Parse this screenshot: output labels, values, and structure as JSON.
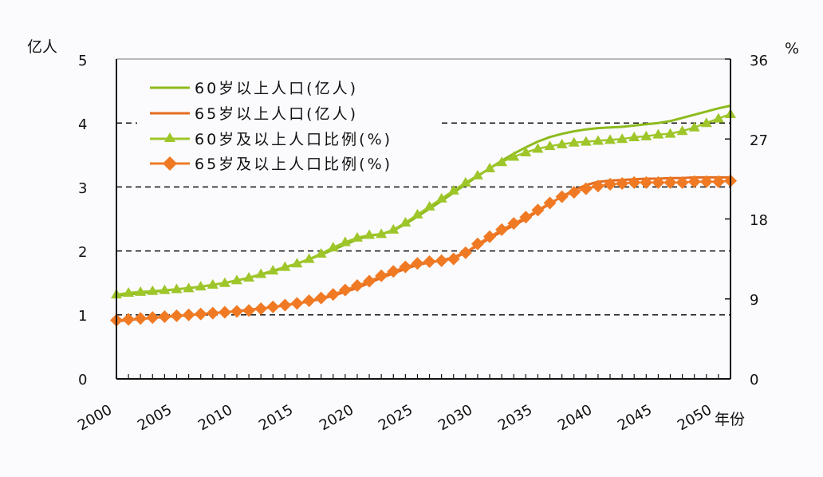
{
  "chart_data": {
    "type": "line",
    "title": "",
    "xlabel": "年份",
    "ylabel_left": "亿人",
    "ylabel_right": "%",
    "x": [
      2000,
      2001,
      2002,
      2003,
      2004,
      2005,
      2006,
      2007,
      2008,
      2009,
      2010,
      2011,
      2012,
      2013,
      2014,
      2015,
      2016,
      2017,
      2018,
      2019,
      2020,
      2021,
      2022,
      2023,
      2024,
      2025,
      2026,
      2027,
      2028,
      2029,
      2030,
      2031,
      2032,
      2033,
      2034,
      2035,
      2036,
      2037,
      2038,
      2039,
      2040,
      2041,
      2042,
      2043,
      2044,
      2045,
      2046,
      2047,
      2048,
      2049,
      2050,
      2051
    ],
    "x_tick_labels": [
      "2000",
      "2005",
      "2010",
      "2015",
      "2020",
      "2025",
      "2030",
      "2035",
      "2040",
      "2045",
      "2050"
    ],
    "ylim_left": [
      0,
      5
    ],
    "yticks_left": [
      0,
      1,
      2,
      3,
      4,
      5
    ],
    "ylim_right": [
      0,
      36
    ],
    "yticks_right": [
      0,
      9,
      18,
      27,
      36
    ],
    "grid": "dashed horizontal at left-axis 1, 2, 3, 4",
    "legend_position": "upper left inside plot",
    "series": [
      {
        "name": "60岁以上人口(亿人)",
        "axis": "left",
        "marker": "none",
        "color": "#8dbb1e",
        "values": [
          1.3,
          1.32,
          1.34,
          1.36,
          1.38,
          1.4,
          1.42,
          1.44,
          1.47,
          1.5,
          1.54,
          1.58,
          1.63,
          1.68,
          1.74,
          1.8,
          1.87,
          1.94,
          2.02,
          2.1,
          2.18,
          2.24,
          2.26,
          2.32,
          2.42,
          2.54,
          2.66,
          2.78,
          2.91,
          3.04,
          3.17,
          3.29,
          3.41,
          3.52,
          3.62,
          3.71,
          3.78,
          3.83,
          3.87,
          3.9,
          3.92,
          3.93,
          3.94,
          3.96,
          3.98,
          4.0,
          4.03,
          4.08,
          4.13,
          4.18,
          4.23,
          4.27
        ]
      },
      {
        "name": "65岁以上人口(亿人)",
        "axis": "left",
        "marker": "none",
        "color": "#e36c20",
        "values": [
          0.9,
          0.92,
          0.94,
          0.95,
          0.97,
          0.98,
          1.0,
          1.01,
          1.03,
          1.04,
          1.06,
          1.08,
          1.1,
          1.12,
          1.15,
          1.18,
          1.21,
          1.25,
          1.3,
          1.36,
          1.42,
          1.5,
          1.58,
          1.65,
          1.72,
          1.78,
          1.82,
          1.85,
          1.9,
          1.98,
          2.08,
          2.2,
          2.3,
          2.4,
          2.5,
          2.62,
          2.74,
          2.85,
          2.95,
          3.03,
          3.08,
          3.1,
          3.11,
          3.12,
          3.13,
          3.13,
          3.14,
          3.14,
          3.15,
          3.15,
          3.15,
          3.15
        ]
      },
      {
        "name": "60岁及以上人口比例(%)",
        "axis": "right",
        "marker": "triangle",
        "color": "#9ec62a",
        "values": [
          9.5,
          9.7,
          9.8,
          9.9,
          10.0,
          10.1,
          10.2,
          10.4,
          10.6,
          10.8,
          11.1,
          11.4,
          11.8,
          12.2,
          12.6,
          13.0,
          13.5,
          14.1,
          14.8,
          15.4,
          15.9,
          16.2,
          16.3,
          16.8,
          17.6,
          18.5,
          19.4,
          20.3,
          21.2,
          22.1,
          22.9,
          23.7,
          24.4,
          25.0,
          25.5,
          25.9,
          26.2,
          26.4,
          26.6,
          26.7,
          26.8,
          26.9,
          27.0,
          27.2,
          27.3,
          27.5,
          27.6,
          27.9,
          28.3,
          28.8,
          29.3,
          29.8
        ]
      },
      {
        "name": "65岁及以上人口比例(%)",
        "axis": "right",
        "marker": "diamond",
        "color": "#f07a24",
        "values": [
          6.6,
          6.7,
          6.8,
          6.9,
          7.0,
          7.1,
          7.2,
          7.3,
          7.4,
          7.5,
          7.6,
          7.7,
          7.9,
          8.1,
          8.3,
          8.5,
          8.8,
          9.1,
          9.5,
          10.0,
          10.5,
          11.0,
          11.6,
          12.1,
          12.6,
          13.0,
          13.2,
          13.3,
          13.5,
          14.2,
          15.2,
          16.0,
          16.8,
          17.5,
          18.2,
          19.0,
          19.8,
          20.5,
          21.0,
          21.4,
          21.7,
          21.9,
          22.0,
          22.1,
          22.1,
          22.1,
          22.1,
          22.1,
          22.2,
          22.2,
          22.2,
          22.3
        ]
      }
    ]
  },
  "axes": {
    "left_unit": "亿人",
    "right_unit": "%",
    "x_unit": "年份",
    "left_ticks": [
      "0",
      "1",
      "2",
      "3",
      "4",
      "5"
    ],
    "right_ticks": [
      "0",
      "9",
      "18",
      "27",
      "36"
    ],
    "x_ticks": [
      "2000",
      "2005",
      "2010",
      "2015",
      "2020",
      "2025",
      "2030",
      "2035",
      "2040",
      "2045",
      "2050"
    ]
  },
  "legend": [
    {
      "label": "60岁以上人口(亿人)",
      "color": "#8dbb1e",
      "marker": "none"
    },
    {
      "label": "65岁以上人口(亿人)",
      "color": "#e36c20",
      "marker": "none"
    },
    {
      "label": "60岁及以上人口比例(%)",
      "color": "#9ec62a",
      "marker": "triangle"
    },
    {
      "label": "65岁及以上人口比例(%)",
      "color": "#f07a24",
      "marker": "diamond"
    }
  ]
}
